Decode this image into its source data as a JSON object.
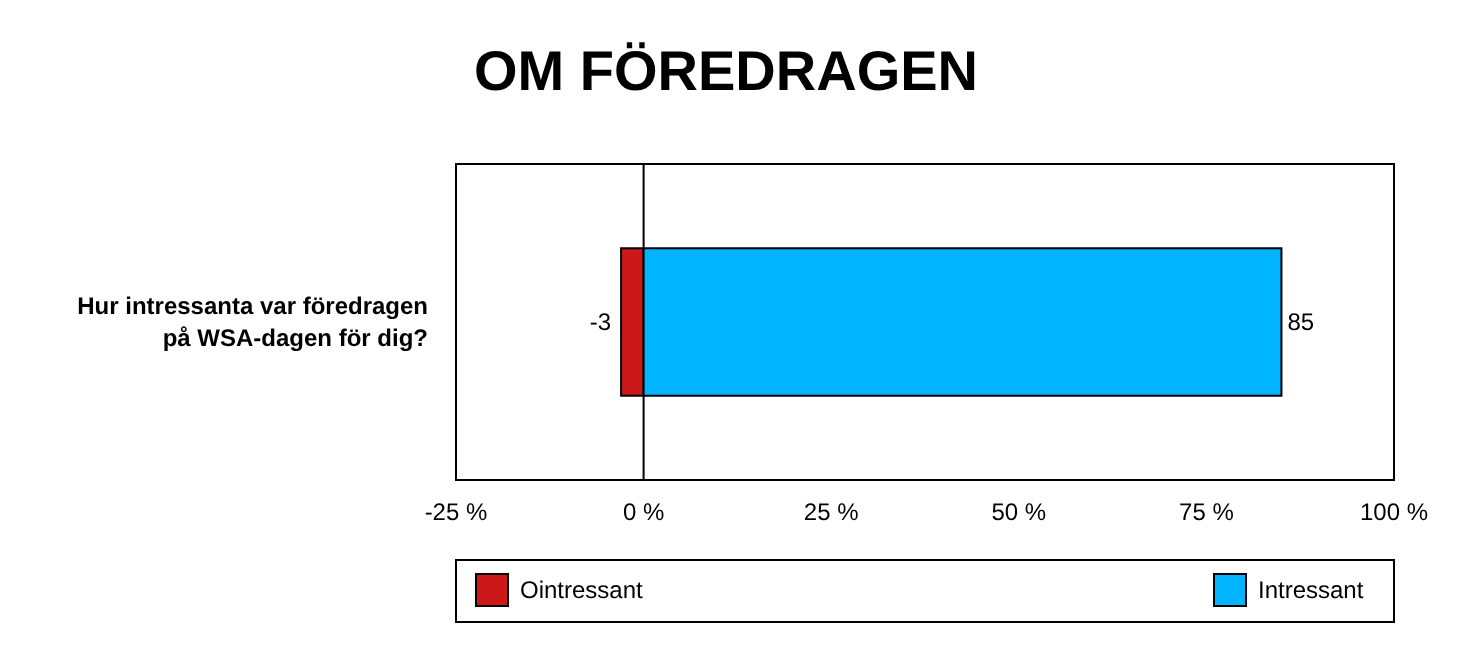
{
  "chart_data": {
    "type": "bar",
    "orientation": "horizontal",
    "stacked": true,
    "title": "OM FÖREDRAGEN",
    "categories": [
      "Hur intressanta var föredragen på WSA-dagen för dig?"
    ],
    "series": [
      {
        "name": "Ointressant",
        "color": "#cc1818",
        "values": [
          -3
        ]
      },
      {
        "name": "Intressant",
        "color": "#00b4ff",
        "values": [
          85
        ]
      }
    ],
    "xlim": [
      -25,
      100
    ],
    "xticks": [
      {
        "value": -25,
        "label": "-25 %"
      },
      {
        "value": 0,
        "label": "0 %"
      },
      {
        "value": 25,
        "label": "25 %"
      },
      {
        "value": 50,
        "label": "50 %"
      },
      {
        "value": 75,
        "label": "75 %"
      },
      {
        "value": 100,
        "label": "100 %"
      }
    ],
    "ref_lines": [
      {
        "axis": "x",
        "value": 0
      }
    ],
    "data_labels": true,
    "legend": "bottom"
  }
}
